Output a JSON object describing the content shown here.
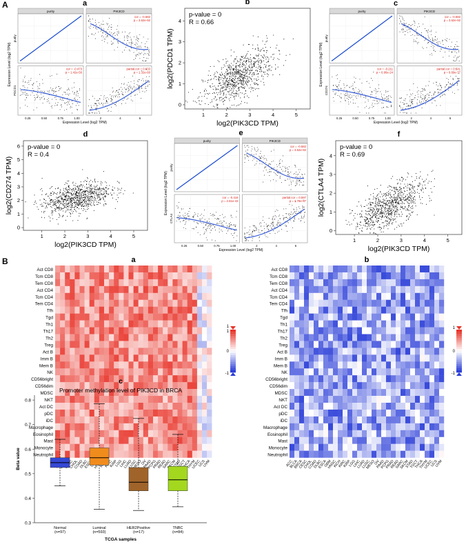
{
  "panelA": {
    "section_label": "A",
    "a": {
      "label": "a",
      "strip_left": "purity",
      "strip_right": "PIK3CD",
      "ylabel": "Expression Level (log2 TPM)",
      "xlabel": "Expression Level (log2 TPM)",
      "row2_label": "PDCD1",
      "cor_top": "cor = -0.582",
      "p_top": "p = 3.62e-92",
      "cor_bot": "cor = -0.473",
      "p_bot": "p = 1.42e-56",
      "pcor": "partial.cor = 0.633",
      "pp": "p = 1.32e-60",
      "ticks_left": [
        "0.25",
        "0.50",
        "0.75",
        "1.00"
      ],
      "ticks_right": [
        "2",
        "4",
        "6"
      ]
    },
    "b": {
      "label": "b",
      "pvalue": "p-value = 0",
      "r": "R = 0.66",
      "ylabel": "log2(PDCD1 TPM)",
      "xlabel": "log2(PIK3CD TPM)",
      "xticks": [
        "1",
        "2",
        "3",
        "4",
        "5"
      ],
      "yticks": [
        "0",
        "1",
        "2",
        "3",
        "4"
      ]
    },
    "c": {
      "label": "c",
      "strip_left": "purity",
      "strip_right": "PIK3CD",
      "ylabel": "Expression Level (log2 TPM)",
      "xlabel": "Expression Level (log2 TPM)",
      "row2_label": "CD274",
      "cor_top": "cor = -0.582",
      "p_top": "p = 3.62e-92",
      "cor_bot": "cor = -0.211",
      "p_bot": "p = 6.96e-24",
      "pcor": "partial.cor = 0.541",
      "pp": "p = 9.69e-77",
      "ticks_left": [
        "0.25",
        "0.50",
        "0.75",
        "1.00"
      ],
      "ticks_right": [
        "2",
        "4",
        "6"
      ]
    },
    "d": {
      "label": "d",
      "pvalue": "p-value = 0",
      "r": "R = 0.4",
      "ylabel": "log2(CD274 TPM)",
      "xlabel": "log2(PIK3CD TPM)",
      "xticks": [
        "1",
        "2",
        "3",
        "4",
        "5"
      ],
      "yticks": [
        "0",
        "1",
        "2",
        "3",
        "4",
        "5",
        "6"
      ]
    },
    "e": {
      "label": "e",
      "strip_left": "purity",
      "strip_right": "PIK3CD",
      "ylabel": "Expression Level (log2 TPM)",
      "xlabel": "Expression Level (log2 TPM)",
      "row2_label": "CTLA4",
      "cor_top": "cor = -0.582",
      "p_top": "p = 3.62e-92",
      "cor_bot": "cor = -0.416",
      "p_bot": "p = 2.61e-43",
      "pcor": "partial.cor = 0.597",
      "pp": "p = 3.78e-97",
      "ticks_left": [
        "0.25",
        "0.50",
        "0.75",
        "1.00"
      ],
      "ticks_right": [
        "2",
        "4",
        "6"
      ]
    },
    "f": {
      "label": "f",
      "pvalue": "p-value = 0",
      "r": "R = 0.69",
      "ylabel": "log2(CTLA4 TPM)",
      "xlabel": "log2(PIK3CD TPM)",
      "xticks": [
        "1",
        "2",
        "3",
        "4",
        "5"
      ],
      "yticks": [
        "0",
        "1",
        "2",
        "3",
        "4"
      ]
    }
  },
  "panelB": {
    "section_label": "B",
    "a_label": "a",
    "b_label": "b",
    "cell_types": [
      "Act CD8",
      "Tcm CD8",
      "Tem CD8",
      "Act CD4",
      "Tcm CD4",
      "Tem CD4",
      "Tfh",
      "Tgd",
      "Th1",
      "Th17",
      "Th2",
      "Treg",
      "Act B",
      "Imm B",
      "Mem B",
      "NK",
      "CD56bright",
      "CD56dim",
      "MDSC",
      "NKT",
      "Act DC",
      "pDC",
      "iDC",
      "Macrophage",
      "Eosinophil",
      "Mast",
      "Monocyte",
      "Neutrophil"
    ],
    "labels_b": [
      "Act CD8",
      "Tcm CD8",
      "Tem CD8",
      "Act CD4",
      "Tcm CD4",
      "Tem CD4",
      "Tfh",
      "Tgd",
      "Th1",
      "Th17",
      "Th2",
      "Treg",
      "Act B",
      "Imm B",
      "Mem B",
      "NK",
      "CD56bright",
      "CD56dim",
      "MDSC",
      "NKT",
      "Act DC",
      "pDC",
      "iDC",
      "Macrophage",
      "Eosinophil",
      "Mast",
      "Monocyte",
      "Neutrophil"
    ],
    "cancers": [
      "ACC",
      "BLCA",
      "BRCA",
      "CESC",
      "CHOL",
      "COAD",
      "DLBC",
      "ESCA",
      "GBM",
      "HNSC",
      "KICH",
      "KIRC",
      "KIRP",
      "LGG",
      "LIHC",
      "LUAD",
      "LUSC",
      "MESO",
      "OV",
      "PAAD",
      "PCPG",
      "PRAD",
      "READ",
      "SARC",
      "SKCM",
      "STAD",
      "TGCT",
      "THCA",
      "THYM",
      "UCEC",
      "UCS",
      "UVM"
    ],
    "legend_a": [
      "1",
      "1",
      "0",
      "-1"
    ],
    "legend_b": [
      "1",
      "0",
      "-1"
    ],
    "colors": {
      "red": "#e8352b",
      "blue": "#2c3fd8",
      "white": "#ffffff"
    }
  },
  "panelC": {
    "label": "c",
    "title": "Promoter methylation level of PIK3CD in BRCA",
    "ylabel": "Beta value",
    "xlabel": "TCGA samples",
    "yticks": [
      "0.3",
      "0.4",
      "0.5",
      "0.6",
      "0.7",
      "0.8"
    ],
    "groups": [
      {
        "name": "Normal",
        "n": "(n=97)",
        "color": "#3548d6"
      },
      {
        "name": "Luminal",
        "n": "(n=593)",
        "color": "#f08c1c"
      },
      {
        "name": "HER2Positive",
        "n": "(n=17)",
        "color": "#a0642a"
      },
      {
        "name": "TNBC",
        "n": "(n=84)",
        "color": "#a3d81e"
      }
    ]
  },
  "chart_data": [
    {
      "type": "box",
      "title": "Promoter methylation level of PIK3CD in BRCA",
      "xlabel": "TCGA samples",
      "ylabel": "Beta value",
      "ylim": [
        0.3,
        0.82
      ],
      "categories": [
        "Normal",
        "Luminal",
        "HER2Positive",
        "TNBC"
      ],
      "boxes": [
        {
          "name": "Normal",
          "min": 0.45,
          "q1": 0.525,
          "median": 0.545,
          "q3": 0.565,
          "max": 0.64
        },
        {
          "name": "Luminal",
          "min": 0.355,
          "q1": 0.535,
          "median": 0.565,
          "q3": 0.605,
          "max": 0.785
        },
        {
          "name": "HER2Positive",
          "min": 0.35,
          "q1": 0.43,
          "median": 0.465,
          "q3": 0.525,
          "max": 0.725
        },
        {
          "name": "TNBC",
          "min": 0.365,
          "q1": 0.43,
          "median": 0.475,
          "q3": 0.53,
          "max": 0.66
        }
      ]
    },
    {
      "type": "scatter",
      "panel": "b",
      "xlabel": "log2(PIK3CD TPM)",
      "ylabel": "log2(PDCD1 TPM)",
      "pvalue": "p-value = 0",
      "R": 0.66,
      "xlim": [
        0.2,
        5.6
      ],
      "ylim": [
        -0.2,
        4.6
      ]
    },
    {
      "type": "scatter",
      "panel": "d",
      "xlabel": "log2(PIK3CD TPM)",
      "ylabel": "log2(CD274 TPM)",
      "pvalue": "p-value = 0",
      "R": 0.4,
      "xlim": [
        0.2,
        5.6
      ],
      "ylim": [
        -0.2,
        6.4
      ]
    },
    {
      "type": "scatter",
      "panel": "f",
      "xlabel": "log2(PIK3CD TPM)",
      "ylabel": "log2(CTLA4 TPM)",
      "pvalue": "p-value = 0",
      "R": 0.69,
      "xlim": [
        0.2,
        5.6
      ],
      "ylim": [
        -0.2,
        4.8
      ]
    }
  ]
}
